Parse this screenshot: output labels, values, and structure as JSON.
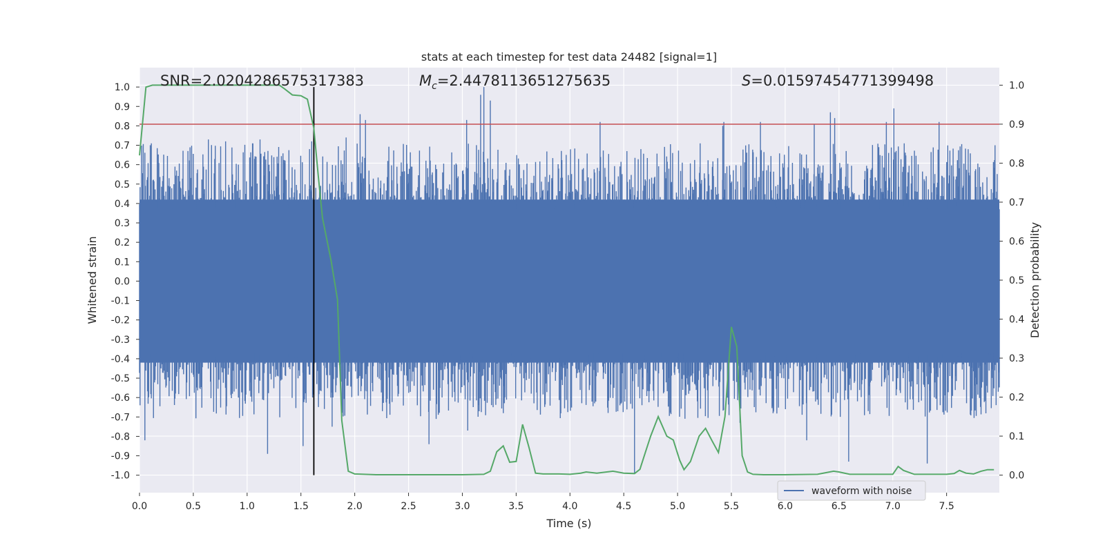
{
  "chart_data": {
    "type": "line",
    "title": "stats at each timestep for test data 24482 [signal=1]",
    "xlabel": "Time (s)",
    "ylabel_left": "Whitened strain",
    "ylabel_right": "Detection probability",
    "xlim": [
      0,
      7.99
    ],
    "ylim_left": [
      -1.09,
      1.1
    ],
    "ylim_right": [
      -0.045,
      1.045
    ],
    "x_ticks": [
      "0.0",
      "0.5",
      "1.0",
      "1.5",
      "2.0",
      "2.5",
      "3.0",
      "3.5",
      "4.0",
      "4.5",
      "5.0",
      "5.5",
      "6.0",
      "6.5",
      "7.0",
      "7.5"
    ],
    "y_ticks_left": [
      "1.0",
      "0.9",
      "0.8",
      "0.7",
      "0.6",
      "0.5",
      "0.4",
      "0.3",
      "0.2",
      "0.1",
      "0.0",
      "-0.1",
      "-0.2",
      "-0.3",
      "-0.4",
      "-0.5",
      "-0.6",
      "-0.7",
      "-0.8",
      "-0.9",
      "-1.0"
    ],
    "y_ticks_right": [
      "1.0",
      "0.9",
      "0.8",
      "0.7",
      "0.6",
      "0.5",
      "0.4",
      "0.3",
      "0.2",
      "0.1",
      "0.0"
    ],
    "grid": true,
    "legend": {
      "placement": "bottom-right",
      "entries": [
        {
          "label": "waveform with noise",
          "color": "#4c72b0"
        }
      ]
    },
    "annotations": {
      "snr": "SNR=2.0204286575317383",
      "mc_prefix": "M",
      "mc_sub": "c",
      "mc_value": "=2.4478113651275635",
      "s_prefix": "S",
      "s_value": "=0.01597454771399498"
    },
    "threshold_line": {
      "y": 0.9,
      "axis": "right",
      "color": "#c44e52"
    },
    "event_marker": {
      "x": 1.62,
      "color": "#000000"
    },
    "series": [
      {
        "name": "waveform with noise",
        "axis": "left",
        "color": "#4c72b0",
        "x_range": [
          0,
          7.99
        ],
        "envelope": {
          "core_pos": 0.42,
          "core_neg": -0.42,
          "max_pos": 1.0,
          "max_neg": -0.99
        },
        "peaks_pos": [
          [
            0.05,
            0.63
          ],
          [
            0.1,
            0.7
          ],
          [
            0.11,
            0.71
          ],
          [
            0.45,
            0.67
          ],
          [
            0.64,
            0.73
          ],
          [
            0.8,
            0.72
          ],
          [
            1.05,
            0.71
          ],
          [
            1.12,
            0.73
          ],
          [
            1.58,
            0.68
          ],
          [
            1.6,
            0.72
          ],
          [
            1.92,
            0.74
          ],
          [
            2.05,
            0.86
          ],
          [
            2.1,
            0.83
          ],
          [
            3.04,
            0.83
          ],
          [
            3.17,
            0.96
          ],
          [
            3.2,
            1.0
          ],
          [
            3.26,
            0.93
          ],
          [
            4.28,
            0.82
          ],
          [
            5.21,
            0.71
          ],
          [
            5.42,
            0.8
          ],
          [
            5.43,
            0.82
          ],
          [
            5.77,
            0.82
          ],
          [
            6.27,
            0.81
          ],
          [
            6.42,
            0.87
          ],
          [
            6.46,
            0.84
          ],
          [
            6.87,
            0.69
          ],
          [
            6.94,
            0.82
          ],
          [
            7.01,
            0.89
          ],
          [
            7.43,
            0.82
          ],
          [
            7.95,
            0.7
          ]
        ],
        "peaks_neg": [
          [
            0.05,
            -0.82
          ],
          [
            1.19,
            -0.89
          ],
          [
            1.52,
            -0.85
          ],
          [
            1.79,
            -0.75
          ],
          [
            2.69,
            -0.84
          ],
          [
            3.05,
            -0.77
          ],
          [
            4.6,
            -0.99
          ],
          [
            5.58,
            -0.73
          ],
          [
            6.2,
            -0.82
          ],
          [
            6.59,
            -0.93
          ],
          [
            7.32,
            -0.94
          ]
        ]
      },
      {
        "name": "",
        "axis": "right",
        "color": "#55a868",
        "x": [
          0.0,
          0.06,
          0.12,
          0.2,
          0.4,
          0.6,
          0.8,
          1.0,
          1.2,
          1.3,
          1.35,
          1.42,
          1.5,
          1.56,
          1.62,
          1.66,
          1.7,
          1.78,
          1.84,
          1.88,
          1.94,
          2.0,
          2.2,
          2.5,
          2.8,
          3.0,
          3.2,
          3.26,
          3.32,
          3.38,
          3.44,
          3.5,
          3.56,
          3.62,
          3.68,
          3.75,
          3.9,
          4.0,
          4.1,
          4.15,
          4.25,
          4.4,
          4.5,
          4.6,
          4.65,
          4.7,
          4.75,
          4.82,
          4.9,
          4.96,
          5.02,
          5.06,
          5.12,
          5.2,
          5.26,
          5.32,
          5.38,
          5.44,
          5.5,
          5.55,
          5.6,
          5.65,
          5.7,
          5.8,
          6.0,
          6.3,
          6.45,
          6.5,
          6.6,
          6.8,
          7.0,
          7.05,
          7.1,
          7.2,
          7.3,
          7.4,
          7.5,
          7.57,
          7.62,
          7.68,
          7.75,
          7.82,
          7.88,
          7.94
        ],
        "values": [
          0.82,
          0.995,
          1.0,
          1.0,
          1.0,
          1.0,
          1.0,
          1.0,
          1.0,
          1.0,
          0.99,
          0.975,
          0.973,
          0.964,
          0.89,
          0.77,
          0.66,
          0.55,
          0.45,
          0.14,
          0.01,
          0.003,
          0.001,
          0.001,
          0.001,
          0.001,
          0.002,
          0.01,
          0.06,
          0.075,
          0.033,
          0.035,
          0.13,
          0.07,
          0.005,
          0.003,
          0.003,
          0.002,
          0.005,
          0.008,
          0.005,
          0.01,
          0.005,
          0.004,
          0.015,
          0.058,
          0.1,
          0.15,
          0.1,
          0.09,
          0.038,
          0.014,
          0.035,
          0.1,
          0.12,
          0.088,
          0.058,
          0.15,
          0.38,
          0.33,
          0.05,
          0.008,
          0.002,
          0.001,
          0.001,
          0.002,
          0.01,
          0.008,
          0.002,
          0.002,
          0.002,
          0.022,
          0.012,
          0.002,
          0.002,
          0.002,
          0.002,
          0.004,
          0.012,
          0.005,
          0.003,
          0.01,
          0.014,
          0.014
        ]
      }
    ]
  }
}
